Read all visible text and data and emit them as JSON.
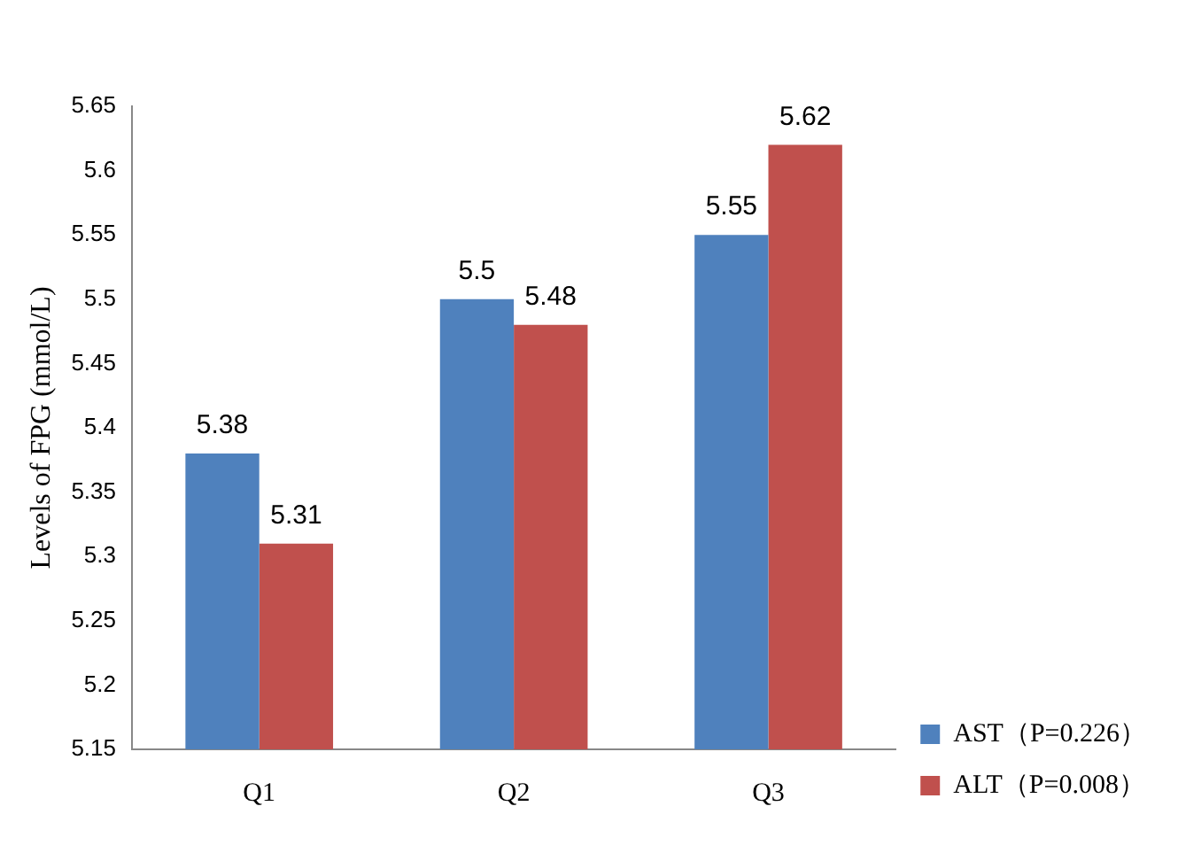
{
  "chart_data": {
    "type": "bar",
    "ylabel": "Levels of FPG (mmol/L)",
    "categories": [
      "Q1",
      "Q2",
      "Q3"
    ],
    "series": [
      {
        "name": "AST（P=0.226）",
        "color": "#4f81bd",
        "values": [
          5.38,
          5.5,
          5.55
        ]
      },
      {
        "name": "ALT（P=0.008）",
        "color": "#c0504d",
        "values": [
          5.31,
          5.48,
          5.62
        ]
      }
    ],
    "ylim": [
      5.15,
      5.65
    ],
    "yticks": [
      5.15,
      5.2,
      5.25,
      5.3,
      5.35,
      5.4,
      5.45,
      5.5,
      5.55,
      5.6,
      5.65
    ],
    "grid": false,
    "legend": "bottom right",
    "data_labels": true
  }
}
